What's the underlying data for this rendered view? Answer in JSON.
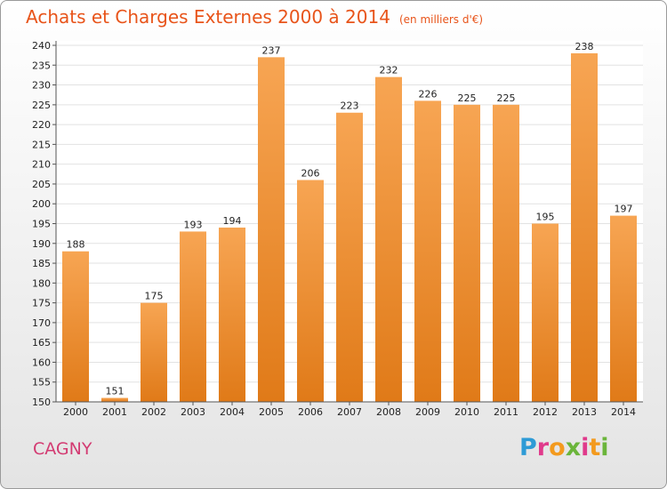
{
  "header": {
    "title": "Achats et Charges Externes 2000 à 2014",
    "unit": "(en milliers d'€)"
  },
  "footer": {
    "city": "CAGNY",
    "logo_letters": [
      "P",
      "r",
      "o",
      "x",
      "i",
      "t",
      "i"
    ],
    "logo_colors": [
      "#2e9bd6",
      "#e03a8b",
      "#f39a1e",
      "#6bb53b",
      "#e03a8b",
      "#f39a1e",
      "#6bb53b"
    ]
  },
  "chart_data": {
    "type": "bar",
    "title": "Achats et Charges Externes 2000 à 2014",
    "subtitle": "(en milliers d'€)",
    "categories": [
      "2000",
      "2001",
      "2002",
      "2003",
      "2004",
      "2005",
      "2006",
      "2007",
      "2008",
      "2009",
      "2010",
      "2011",
      "2012",
      "2013",
      "2014"
    ],
    "values": [
      188,
      151,
      175,
      193,
      194,
      237,
      206,
      223,
      232,
      226,
      225,
      225,
      195,
      238,
      197
    ],
    "ylim": [
      150,
      240
    ],
    "yticks": [
      150,
      155,
      160,
      165,
      170,
      175,
      180,
      185,
      190,
      195,
      200,
      205,
      210,
      215,
      220,
      225,
      230,
      235,
      240
    ],
    "grid": true,
    "bar_color_top": "#f7a553",
    "bar_color_bottom": "#e07a18",
    "xlabel": "",
    "ylabel": ""
  }
}
